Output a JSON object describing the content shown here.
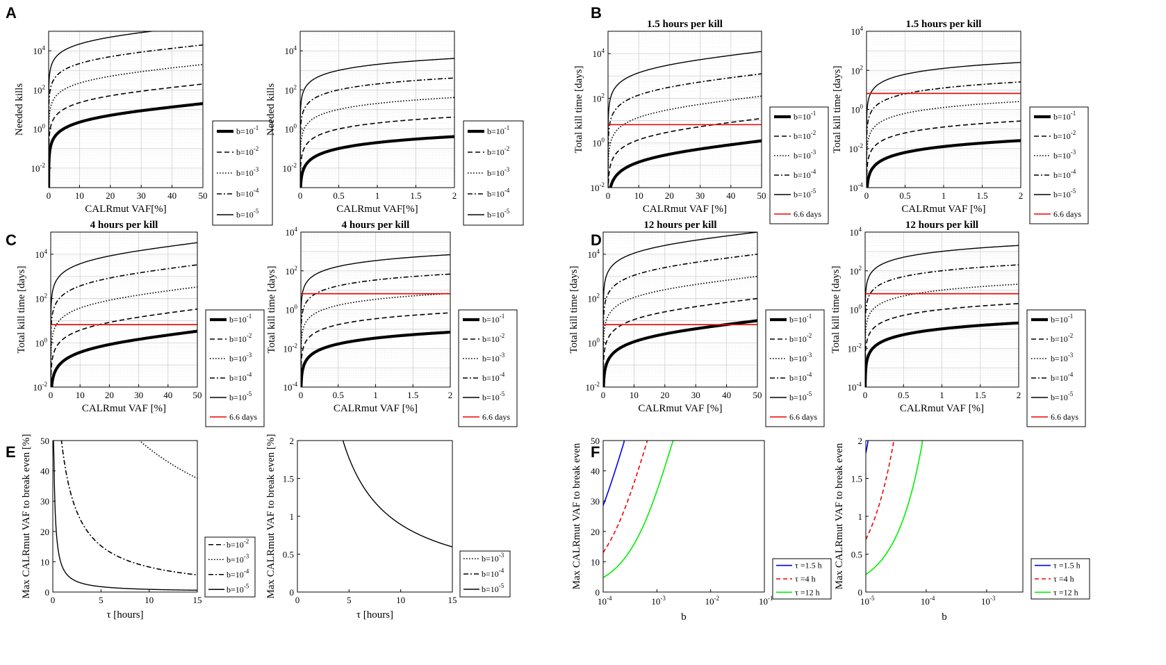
{
  "figure": {
    "panel_letters": [
      "A",
      "B",
      "C",
      "D",
      "E",
      "F"
    ],
    "xlabel_vaf": "CALRmut VAF [%]",
    "xlabel_vaf_nospace": "CALRmut VAF[%]",
    "ylabel_kills": "Needed kills",
    "ylabel_time": "Total kill time [days]",
    "ylabel_break": "Max CALRmut VAF to break even [%]",
    "ylabel_break_f": "Max CALRmut VAF to break even",
    "xlabel_tau": "τ [hours]",
    "xlabel_b": "b",
    "red_line_label": "6.6 days"
  },
  "legend_b": [
    "b=10^-1",
    "b=10^-2",
    "b=10^-3",
    "b=10^-4",
    "b=10^-5"
  ],
  "legend_tau": [
    "τ =1.5 h",
    "τ =4 h",
    "τ =12 h"
  ],
  "chart_data": [
    {
      "id": "A1",
      "panel": "A",
      "type": "line",
      "title": "",
      "xlabel": "CALRmut VAF[%]",
      "ylabel": "Needed kills",
      "xlim": [
        0,
        50
      ],
      "yscale": "log",
      "ylim_log10": [
        -3,
        5
      ],
      "series_b_exponents": [
        -1,
        -2,
        -3,
        -4,
        -5
      ],
      "tau_hours": null,
      "red_line_days": null
    },
    {
      "id": "A2",
      "panel": "A",
      "type": "line",
      "title": "",
      "xlabel": "CALRmut VAF[%]",
      "ylabel": "Needed kills",
      "xlim": [
        0,
        2
      ],
      "yscale": "log",
      "ylim_log10": [
        -3,
        5
      ],
      "series_b_exponents": [
        -1,
        -2,
        -3,
        -4,
        -5
      ],
      "tau_hours": null,
      "red_line_days": null
    },
    {
      "id": "B1",
      "panel": "B",
      "type": "line",
      "title": "1.5 hours per kill",
      "xlabel": "CALRmut VAF [%]",
      "ylabel": "Total kill time [days]",
      "xlim": [
        0,
        50
      ],
      "yscale": "log",
      "ylim_log10": [
        -2,
        5
      ],
      "series_b_exponents": [
        -1,
        -2,
        -3,
        -4,
        -5
      ],
      "tau_hours": 1.5,
      "red_line_days": 6.6
    },
    {
      "id": "B2",
      "panel": "B",
      "type": "line",
      "title": "1.5 hours per kill",
      "xlabel": "CALRmut VAF [%]",
      "ylabel": "Total kill time [days]",
      "xlim": [
        0,
        2
      ],
      "yscale": "log",
      "ylim_log10": [
        -4,
        4
      ],
      "series_b_exponents": [
        -1,
        -2,
        -3,
        -4,
        -5
      ],
      "tau_hours": 1.5,
      "red_line_days": 6.6
    },
    {
      "id": "C1",
      "panel": "C",
      "type": "line",
      "title": "4 hours per kill",
      "xlabel": "CALRmut VAF [%]",
      "ylabel": "Total kill time [days]",
      "xlim": [
        0,
        50
      ],
      "yscale": "log",
      "ylim_log10": [
        -2,
        5
      ],
      "series_b_exponents": [
        -1,
        -2,
        -3,
        -4,
        -5
      ],
      "tau_hours": 4,
      "red_line_days": 6.6
    },
    {
      "id": "C2",
      "panel": "C",
      "type": "line",
      "title": "4 hours per kill",
      "xlabel": "CALRmut VAF [%]",
      "ylabel": "Total kill time [days]",
      "xlim": [
        0,
        2
      ],
      "yscale": "log",
      "ylim_log10": [
        -4,
        4
      ],
      "series_b_exponents": [
        -1,
        -2,
        -3,
        -4,
        -5
      ],
      "tau_hours": 4,
      "red_line_days": 6.6
    },
    {
      "id": "D1",
      "panel": "D",
      "type": "line",
      "title": "12 hours per kill",
      "xlabel": "CALRmut VAF [%]",
      "ylabel": "Total kill time [days]",
      "xlim": [
        0,
        50
      ],
      "yscale": "log",
      "ylim_log10": [
        -2,
        5
      ],
      "series_b_exponents": [
        -1,
        -2,
        -3,
        -4,
        -5
      ],
      "tau_hours": 12,
      "red_line_days": 6.6
    },
    {
      "id": "D2",
      "panel": "D",
      "type": "line",
      "title": "12 hours per kill",
      "xlabel": "CALRmut VAF [%]",
      "ylabel": "Total kill time [days]",
      "xlim": [
        0,
        2
      ],
      "yscale": "log",
      "ylim_log10": [
        -4,
        4
      ],
      "series_b_exponents": [
        -1,
        -2,
        -3,
        -4,
        -5
      ],
      "tau_hours": 12,
      "red_line_days": 6.6
    },
    {
      "id": "E1",
      "panel": "E",
      "type": "line",
      "title": "",
      "xlabel": "τ [hours]",
      "ylabel": "Max CALRmut VAF to break even [%]",
      "xlim": [
        0,
        15
      ],
      "ylim": [
        0,
        50
      ],
      "series_b_exponents": [
        -2,
        -3,
        -4,
        -5
      ]
    },
    {
      "id": "E2",
      "panel": "E",
      "type": "line",
      "title": "",
      "xlabel": "τ [hours]",
      "ylabel": "Max CALRmut VAF to break even [%]",
      "xlim": [
        0,
        15
      ],
      "ylim": [
        0,
        2
      ],
      "series_b_exponents": [
        -3,
        -4,
        -5
      ]
    },
    {
      "id": "F1",
      "panel": "F",
      "type": "line",
      "title": "",
      "xlabel": "b",
      "ylabel": "Max CALRmut VAF to break even",
      "xscale": "log",
      "xlim_log10": [
        -4,
        -1
      ],
      "ylim": [
        0,
        50
      ],
      "series_tau_hours": [
        1.5,
        4,
        12
      ]
    },
    {
      "id": "F2",
      "panel": "F",
      "type": "line",
      "title": "",
      "xlabel": "b",
      "ylabel": "Max CALRmut VAF to break even",
      "xscale": "log",
      "xlim_log10": [
        -5,
        -2.4
      ],
      "ylim": [
        0,
        2
      ],
      "series_tau_hours": [
        1.5,
        4,
        12
      ]
    }
  ]
}
